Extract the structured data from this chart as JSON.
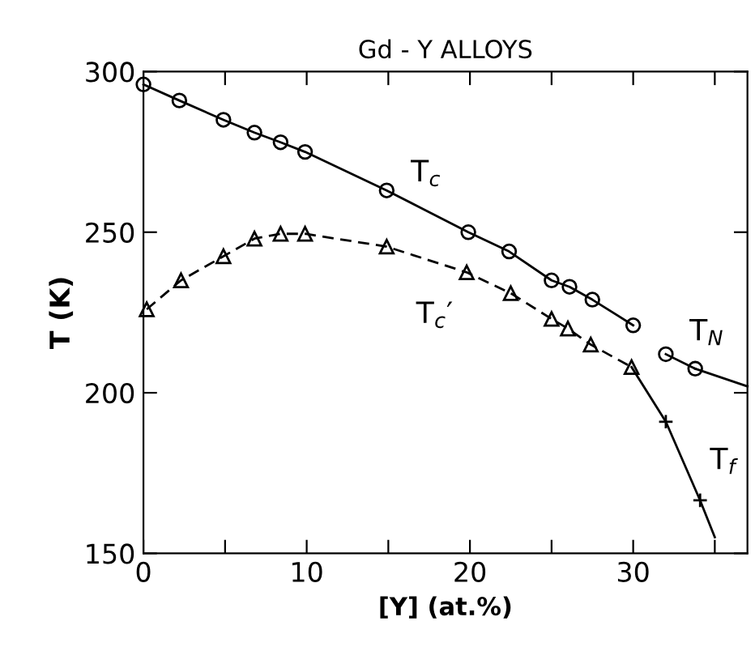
{
  "chart_data": {
    "type": "line",
    "title": "Gd - Y ALLOYS",
    "xlabel": "[Y] (at.%)",
    "ylabel": "T (K)",
    "xlim": [
      0,
      37
    ],
    "ylim": [
      150,
      300
    ],
    "xticks": [
      0,
      {
        "value": 5,
        "label": null
      },
      10,
      {
        "value": 15,
        "label": null
      },
      20,
      {
        "value": 25,
        "label": null
      },
      30,
      {
        "value": 35,
        "label": null
      }
    ],
    "yticks": [
      150,
      200,
      250,
      300
    ],
    "grid": false,
    "series": [
      {
        "name": "T$_{c}$",
        "color": "#000000",
        "marker": "circle",
        "line_style": "solid",
        "x": [
          0,
          2.2,
          4.9,
          6.8,
          8.4,
          9.9,
          14.9,
          19.9,
          22.4,
          25,
          26.1,
          27.5,
          30
        ],
        "values": [
          296,
          291,
          285,
          281,
          278,
          275,
          263,
          250,
          244,
          235,
          233,
          229,
          221
        ]
      },
      {
        "name": "T$_{N}$",
        "color": "#000000",
        "marker": "circle",
        "line_style": "solid",
        "x": [
          32,
          33.8
        ],
        "values": [
          212,
          207.5
        ]
      },
      {
        "color": "#000000",
        "line_style": "solid",
        "x": [
          33.8,
          37
        ],
        "values": [
          207.5,
          202
        ]
      },
      {
        "name": "T$_{c}$′",
        "color": "#000000",
        "marker": "triangle",
        "line_style": "dashed",
        "x": [
          0.2,
          2.3,
          4.9,
          6.8,
          8.4,
          9.9,
          14.9,
          19.8,
          22.5,
          25,
          26,
          27.4,
          29.9
        ],
        "values": [
          226,
          235,
          242.5,
          248,
          249.5,
          249.5,
          245.5,
          237.5,
          231,
          223,
          220,
          215,
          208
        ]
      },
      {
        "color": "#000000",
        "line_style": "solid",
        "x": [
          29.9,
          32
        ],
        "values": [
          208,
          191
        ]
      },
      {
        "name": "T$_{f}$",
        "color": "#000000",
        "marker": "cross",
        "line_style": "solid",
        "x": [
          32,
          34.1
        ],
        "values": [
          191,
          166.5
        ]
      },
      {
        "color": "#000000",
        "line_style": "solid",
        "x": [
          34.1,
          35
        ],
        "values": [
          166.5,
          155
        ]
      }
    ]
  }
}
